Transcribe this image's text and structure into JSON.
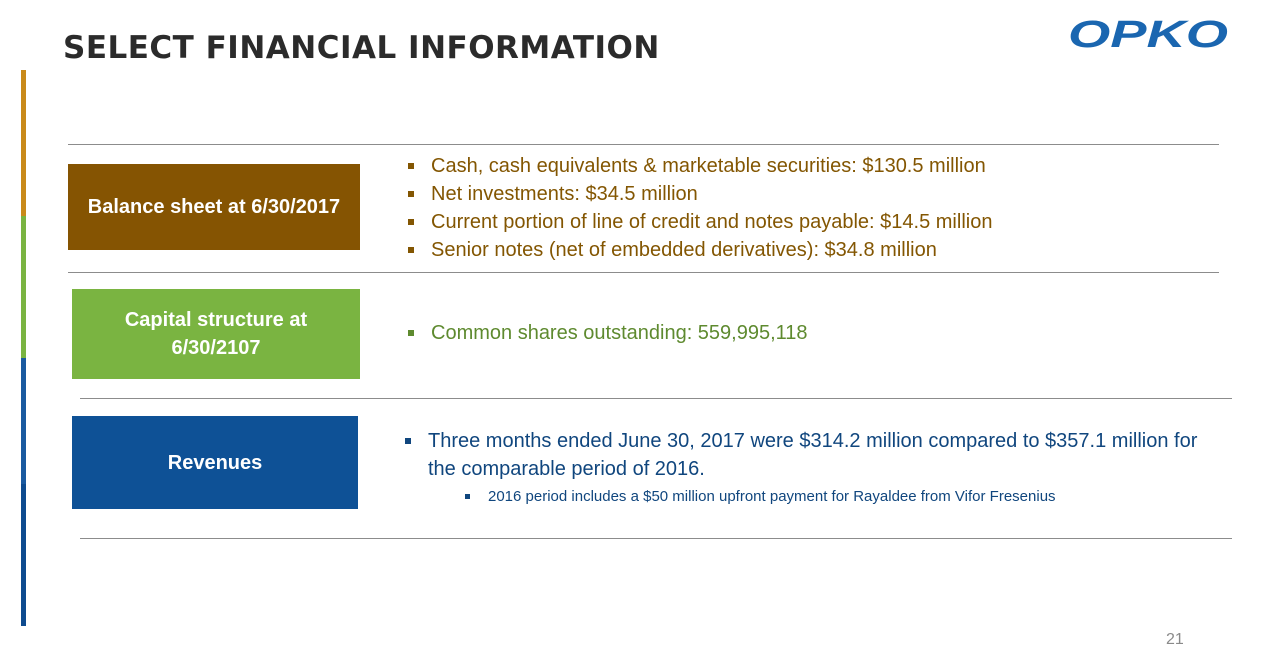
{
  "slide": {
    "title": "SELECT FINANCIAL INFORMATION",
    "logo_text": "OPKO",
    "page_number": "21"
  },
  "colors": {
    "brand_blue": "#1a66b0",
    "balance_brown": "#855402",
    "capital_green": "#7ab441",
    "revenue_blue": "#0e5196"
  },
  "sections": {
    "balance": {
      "label": "Balance sheet at 6/30/2017",
      "items": [
        "Cash, cash equivalents & marketable securities: $130.5 million",
        "Net investments: $34.5 million",
        "Current portion of line of credit and notes payable: $14.5 million",
        "Senior notes (net of embedded derivatives): $34.8 million"
      ]
    },
    "capital": {
      "label_line1": "Capital structure at",
      "label_line2": "6/30/2107",
      "items": [
        "Common shares outstanding: 559,995,118"
      ]
    },
    "revenue": {
      "label": "Revenues",
      "main": "Three months ended June 30, 2017 were $314.2 million compared to $357.1 million for the comparable period of 2016.",
      "sub": "2016 period includes a $50 million upfront payment for Rayaldee from Vifor Fresenius"
    }
  }
}
